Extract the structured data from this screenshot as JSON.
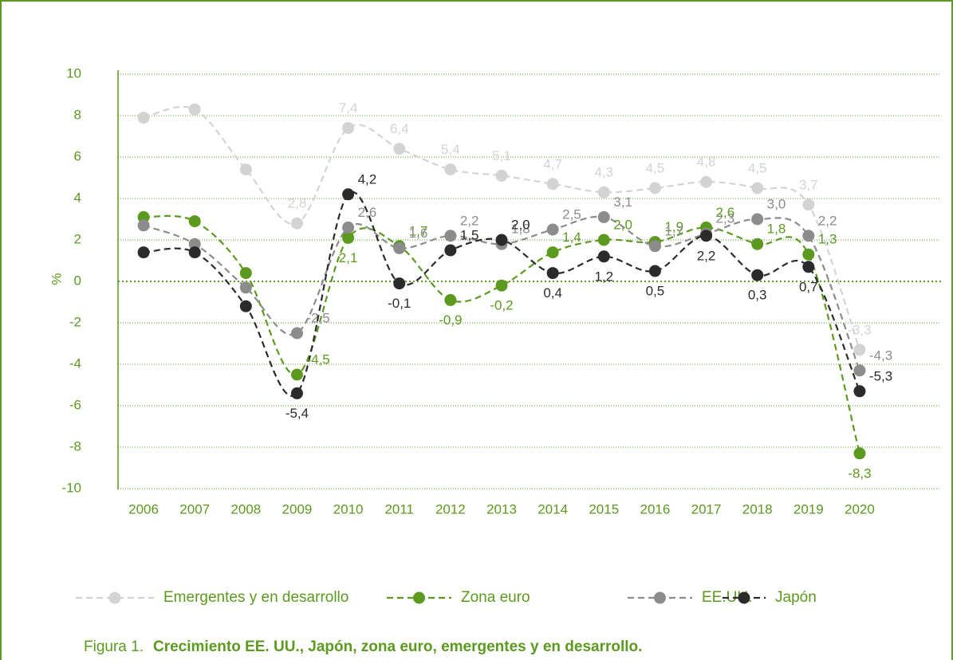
{
  "chart_data": {
    "type": "line",
    "y_label": "%",
    "caption_prefix": "Figura 1.",
    "caption": "Crecimiento EE. UU., Japón, zona euro, emergentes y en desarrollo.",
    "categories": [
      "2006",
      "2007",
      "2008",
      "2009",
      "2010",
      "2011",
      "2012",
      "2013",
      "2014",
      "2015",
      "2016",
      "2017",
      "2018",
      "2019",
      "2020"
    ],
    "ylim": [
      -10,
      10
    ],
    "yticks": [
      -10,
      -8,
      -6,
      -4,
      -2,
      0,
      2,
      4,
      6,
      8,
      10
    ],
    "grid": true,
    "legend": "bottom",
    "series": [
      {
        "name": "Emergentes y en desarrollo",
        "color": "#d3d3d3",
        "values": [
          7.9,
          8.3,
          5.4,
          2.8,
          7.4,
          6.4,
          5.4,
          5.1,
          4.7,
          4.3,
          4.5,
          4.8,
          4.5,
          3.7,
          -3.3
        ],
        "value_labels": [
          null,
          null,
          null,
          "2,8",
          "7,4",
          "6,4",
          "5,4",
          "5,1",
          "4,7",
          "4,3",
          "4,5",
          "4,8",
          "4,5",
          "3,7",
          "-3,3"
        ]
      },
      {
        "name": "Zona euro",
        "color": "#5b9a1f",
        "values": [
          3.1,
          2.9,
          0.4,
          -4.5,
          2.1,
          1.7,
          -0.9,
          -0.2,
          1.4,
          2.0,
          1.9,
          2.6,
          1.8,
          1.3,
          -8.3
        ],
        "value_labels": [
          null,
          null,
          null,
          "-4,5",
          "2,1",
          "1,7",
          "-0,9",
          "-0,2",
          "1,4",
          "2,0",
          "1,9",
          "2,6",
          "1,8",
          "1,3",
          "-8,3"
        ]
      },
      {
        "name": "EE.UU.",
        "color": "#8c8c8c",
        "values": [
          2.7,
          1.8,
          -0.3,
          -2.5,
          2.6,
          1.6,
          2.2,
          1.8,
          2.5,
          3.1,
          1.7,
          2.3,
          3.0,
          2.2,
          -4.3
        ],
        "value_labels": [
          null,
          null,
          null,
          "-2,5",
          "2,6",
          "1,6",
          "2,2",
          "1,8",
          "2,5",
          "3,1",
          "1,7",
          "2,3",
          "3,0",
          "2,2",
          "-4,3"
        ]
      },
      {
        "name": "Japón",
        "color": "#2b2b2b",
        "values": [
          1.4,
          1.4,
          -1.2,
          -5.4,
          4.2,
          -0.1,
          1.5,
          2.0,
          0.4,
          1.2,
          0.5,
          2.2,
          0.3,
          0.7,
          -5.3
        ],
        "value_labels": [
          null,
          null,
          null,
          "-5,4",
          "4,2",
          "-0,1",
          "1,5",
          "2,0",
          "0,4",
          "1,2",
          "0,5",
          "2,2",
          "0,3",
          "0,7",
          "-5,3"
        ]
      }
    ]
  }
}
